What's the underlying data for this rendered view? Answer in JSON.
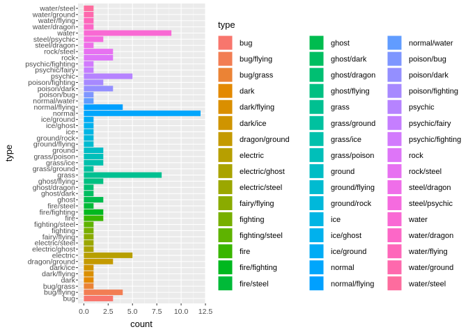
{
  "chart_data": {
    "type": "bar",
    "orientation": "horizontal",
    "xlabel": "count",
    "ylabel": "type",
    "xlim": [
      0,
      12.5
    ],
    "xticks": [
      0,
      2.5,
      5,
      7.5,
      10,
      12.5
    ],
    "xtick_labels": [
      "0.0",
      "2.5",
      "5.0",
      "7.5",
      "10.0",
      "12.5"
    ],
    "grid": true,
    "legend": {
      "title": "type",
      "placement": "right",
      "columns": 3
    },
    "categories": [
      "bug",
      "bug/flying",
      "bug/grass",
      "dark",
      "dark/flying",
      "dark/ice",
      "dragon/ground",
      "electric",
      "electric/ghost",
      "electric/steel",
      "fairy/flying",
      "fighting",
      "fighting/steel",
      "fire",
      "fire/fighting",
      "fire/steel",
      "ghost",
      "ghost/dark",
      "ghost/dragon",
      "ghost/flying",
      "grass",
      "grass/ground",
      "grass/ice",
      "grass/poison",
      "ground",
      "ground/flying",
      "ground/rock",
      "ice",
      "ice/ghost",
      "ice/ground",
      "normal",
      "normal/flying",
      "normal/water",
      "poison/bug",
      "poison/dark",
      "poison/fighting",
      "psychic",
      "psychic/fairy",
      "psychic/fighting",
      "rock",
      "rock/steel",
      "steel/dragon",
      "steel/psychic",
      "water",
      "water/dragon",
      "water/flying",
      "water/ground",
      "water/steel"
    ],
    "values": [
      3,
      4,
      1,
      1,
      1,
      1,
      3,
      5,
      1,
      1,
      1,
      1,
      1,
      2,
      2,
      1,
      2,
      1,
      1,
      2,
      8,
      1,
      2,
      2,
      2,
      1,
      1,
      1,
      1,
      1,
      12,
      4,
      1,
      1,
      3,
      2,
      5,
      1,
      1,
      3,
      3,
      1,
      2,
      9,
      1,
      1,
      1,
      1
    ],
    "colors": [
      "#F8766D",
      "#F27D53",
      "#EB8335",
      "#E38900",
      "#DA8F00",
      "#CF9400",
      "#C49A00",
      "#B79F00",
      "#AAA300",
      "#9BA700",
      "#8AAB00",
      "#77AF00",
      "#5EB300",
      "#39B600",
      "#00B81F",
      "#00BA38",
      "#00BC4F",
      "#00BE61",
      "#00BF72",
      "#00C082",
      "#00C091",
      "#00C19F",
      "#00C0AC",
      "#00BFB9",
      "#00BDC5",
      "#00BBD0",
      "#00B8DA",
      "#00B5E4",
      "#00B1ED",
      "#00ACF5",
      "#00A6FC",
      "#00A0FF",
      "#619CFF",
      "#7E96FF",
      "#948FFF",
      "#A789FF",
      "#B683FF",
      "#C57EFF",
      "#D27AFD",
      "#DE75F8",
      "#E771F1",
      "#EF6EE9",
      "#F56BDF",
      "#F969D4",
      "#FC67C7",
      "#FE67BA",
      "#FE69AD",
      "#FD6C9E"
    ]
  }
}
